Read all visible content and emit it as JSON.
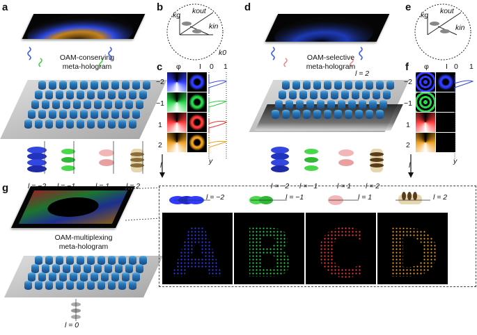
{
  "panels": {
    "a": "a",
    "b": "b",
    "c": "c",
    "d": "d",
    "e": "e",
    "f": "f",
    "g": "g"
  },
  "holograms": {
    "conserving": [
      "OAM-conserving",
      "meta-hologram"
    ],
    "selective": [
      "OAM-selective",
      "meta-hologram"
    ],
    "multiplexing": [
      "OAM-multiplexing",
      "meta-hologram"
    ]
  },
  "modes": [
    "l = −2",
    "l = −1",
    "l = 1",
    "l = 2"
  ],
  "mode_values": [
    "−2",
    "−1",
    "1",
    "2"
  ],
  "mode_zero": "l = 0",
  "mode_two_selected": "l = 2",
  "kspace": {
    "kg": "kg",
    "kout": "kout",
    "kin": "kin",
    "k0": "k0"
  },
  "phase_header": {
    "phi": "φ",
    "I": "I",
    "zero": "0",
    "one": "1"
  },
  "axis": {
    "l": "l",
    "y": "y"
  },
  "letters": [
    "A",
    "B",
    "C",
    "D"
  ],
  "colors": {
    "blue": "#2f3cff",
    "green": "#28d84a",
    "red": "#ff3b3b",
    "orange": "#f0a020"
  }
}
